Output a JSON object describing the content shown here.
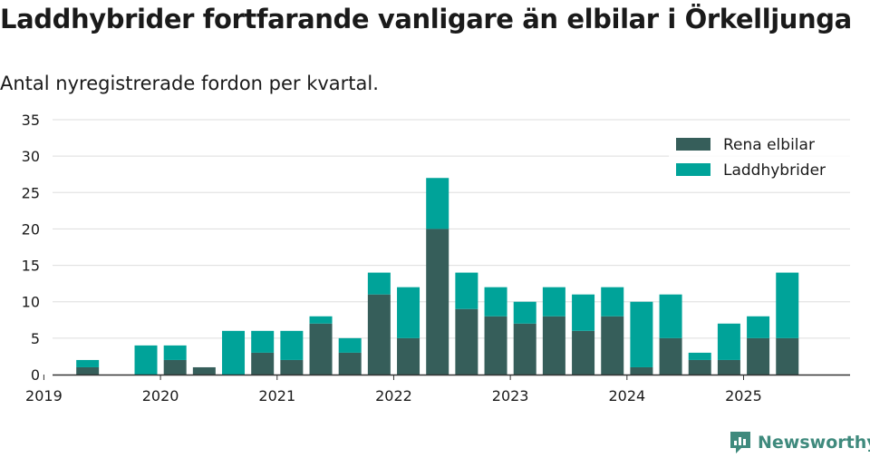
{
  "title": "Laddhybrider fortfarande vanligare än elbilar i Örkelljunga",
  "subtitle": "Antal nyregistrerade fordon per kvartal.",
  "brand": "Newsworthy",
  "colors": {
    "rena": "#365e5a",
    "ladd": "#00a399",
    "grid": "#dddddd",
    "axis": "#333333",
    "brand": "#3f8a7d"
  },
  "chart_data": {
    "type": "bar",
    "stacked": true,
    "title": "",
    "xlabel": "",
    "ylabel": "",
    "ylim": [
      0,
      35
    ],
    "yticks": [
      0,
      5,
      10,
      15,
      20,
      25,
      30,
      35
    ],
    "xtick_labels": [
      "2019",
      "2020",
      "2021",
      "2022",
      "2023",
      "2024",
      "2025"
    ],
    "grid": true,
    "legend_position": "top-right",
    "categories": [
      "2019 Q1",
      "2019 Q2",
      "2019 Q3",
      "2019 Q4",
      "2020 Q1",
      "2020 Q2",
      "2020 Q3",
      "2020 Q4",
      "2021 Q1",
      "2021 Q2",
      "2021 Q3",
      "2021 Q4",
      "2022 Q1",
      "2022 Q2",
      "2022 Q3",
      "2022 Q4",
      "2023 Q1",
      "2023 Q2",
      "2023 Q3",
      "2023 Q4",
      "2024 Q1",
      "2024 Q2",
      "2024 Q3",
      "2024 Q4",
      "2025 Q1",
      "2025 Q2"
    ],
    "series": [
      {
        "name": "Rena elbilar",
        "values": [
          0,
          1,
          0,
          0,
          2,
          1,
          0,
          3,
          2,
          7,
          3,
          11,
          5,
          20,
          9,
          8,
          7,
          8,
          6,
          8,
          1,
          5,
          2,
          2,
          5,
          5
        ]
      },
      {
        "name": "Laddhybrider",
        "values": [
          0,
          1,
          0,
          4,
          2,
          0,
          6,
          3,
          4,
          1,
          2,
          3,
          7,
          7,
          5,
          4,
          3,
          4,
          5,
          4,
          9,
          6,
          1,
          5,
          3,
          9
        ]
      }
    ]
  }
}
